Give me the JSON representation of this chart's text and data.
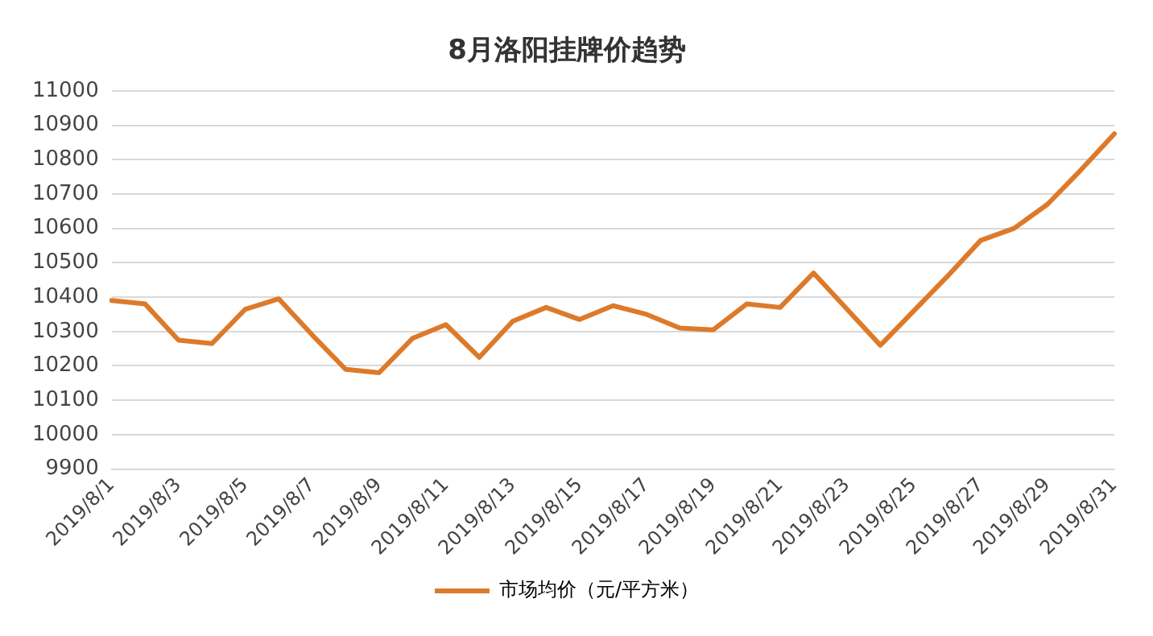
{
  "chart_data": {
    "type": "line",
    "title": "8月洛阳挂牌价趋势",
    "categories": [
      "2019/8/1",
      null,
      "2019/8/3",
      null,
      "2019/8/5",
      null,
      "2019/8/7",
      null,
      "2019/8/9",
      null,
      "2019/8/11",
      null,
      "2019/8/13",
      null,
      "2019/8/15",
      null,
      "2019/8/17",
      null,
      "2019/8/19",
      null,
      "2019/8/21",
      null,
      "2019/8/23",
      null,
      "2019/8/25",
      null,
      "2019/8/27",
      null,
      "2019/8/29",
      null,
      "2019/8/31"
    ],
    "series": [
      {
        "name": "市场均价（元/平方米）",
        "color": "#dd7a2a",
        "values": [
          10390,
          10380,
          10275,
          10265,
          10365,
          10395,
          10290,
          10190,
          10180,
          10280,
          10320,
          10225,
          10330,
          10370,
          10335,
          10375,
          10350,
          10310,
          10305,
          10380,
          10370,
          10470,
          10365,
          10260,
          10360,
          10460,
          10565,
          10600,
          10670,
          10770,
          10875
        ]
      }
    ],
    "ylim": [
      9900,
      11000
    ],
    "yticks": [
      9900,
      10000,
      10100,
      10200,
      10300,
      10400,
      10500,
      10600,
      10700,
      10800,
      10900,
      11000
    ],
    "grid": "y",
    "legend": "bottom",
    "marker": "none",
    "line_style": "solid"
  }
}
